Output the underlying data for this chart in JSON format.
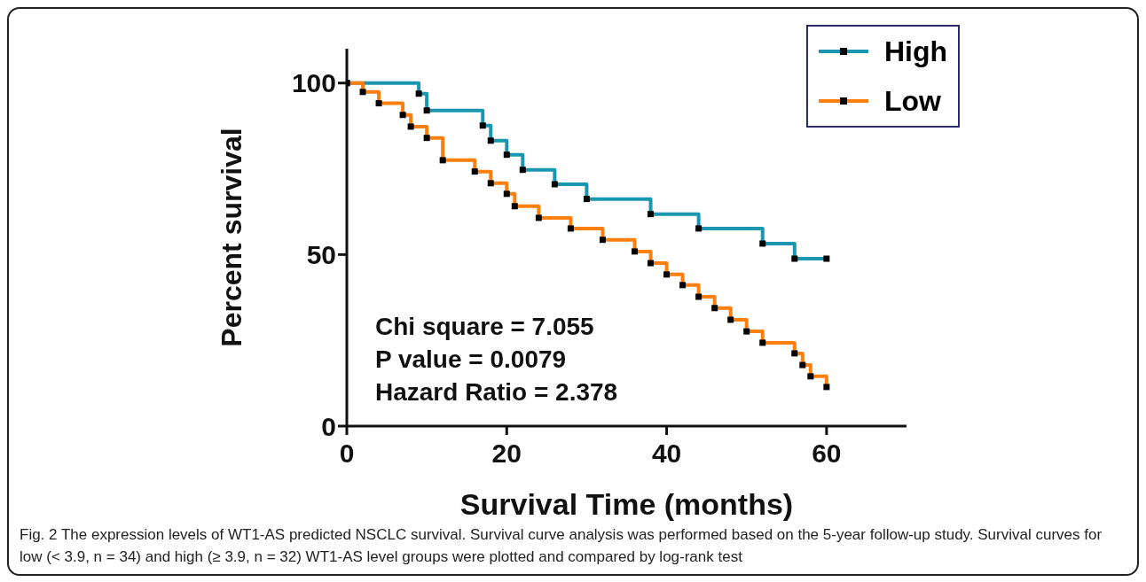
{
  "chart_data": {
    "type": "step",
    "xlabel": "Survival Time (months)",
    "ylabel": "Percent survival",
    "xlim": [
      0,
      70
    ],
    "xticks": [
      0,
      20,
      40,
      60
    ],
    "ylim": [
      0,
      110
    ],
    "yticks": [
      0,
      50,
      100
    ],
    "grid": false,
    "legend": "top right",
    "marker": "square",
    "line_style": "solid",
    "series": [
      {
        "name": "High",
        "color": "#1a96b0",
        "x": [
          0,
          9,
          10,
          17,
          18,
          20,
          22,
          26,
          30,
          38,
          44,
          52,
          56,
          60
        ],
        "values": [
          100,
          96.9,
          92,
          87.6,
          83.2,
          79.1,
          74.7,
          70.5,
          66.2,
          61.8,
          57.6,
          53.2,
          48.8,
          48.8
        ]
      },
      {
        "name": "Low",
        "color": "#ff7f0e",
        "x": [
          0,
          2,
          4,
          7,
          8,
          10,
          12,
          16,
          18,
          20,
          21,
          24,
          28,
          32,
          36,
          38,
          40,
          42,
          44,
          46,
          48,
          50,
          52,
          56,
          57,
          58,
          60
        ],
        "values": [
          100,
          97.4,
          94.1,
          90.7,
          87.3,
          84,
          77.5,
          74.2,
          70.8,
          67.7,
          64.1,
          60.7,
          57.6,
          54.3,
          50.9,
          47.5,
          44.2,
          41.1,
          37.7,
          34.4,
          31,
          27.6,
          24.3,
          21.2,
          17.8,
          14.5,
          11.4
        ]
      }
    ],
    "annotations": [
      "Chi square = 7.055",
      "P value = 0.0079",
      "Hazard Ratio = 2.378",
      "Fig. 2 The expression levels of WT1-AS predicted NSCLC survival. Survival curve analysis was performed based on the 5-year follow-up study. Survival curves for low (< 3.9, n = 34) and high (≥ 3.9, n = 32) WT1-AS level groups were plotted and compared by log-rank test"
    ]
  }
}
